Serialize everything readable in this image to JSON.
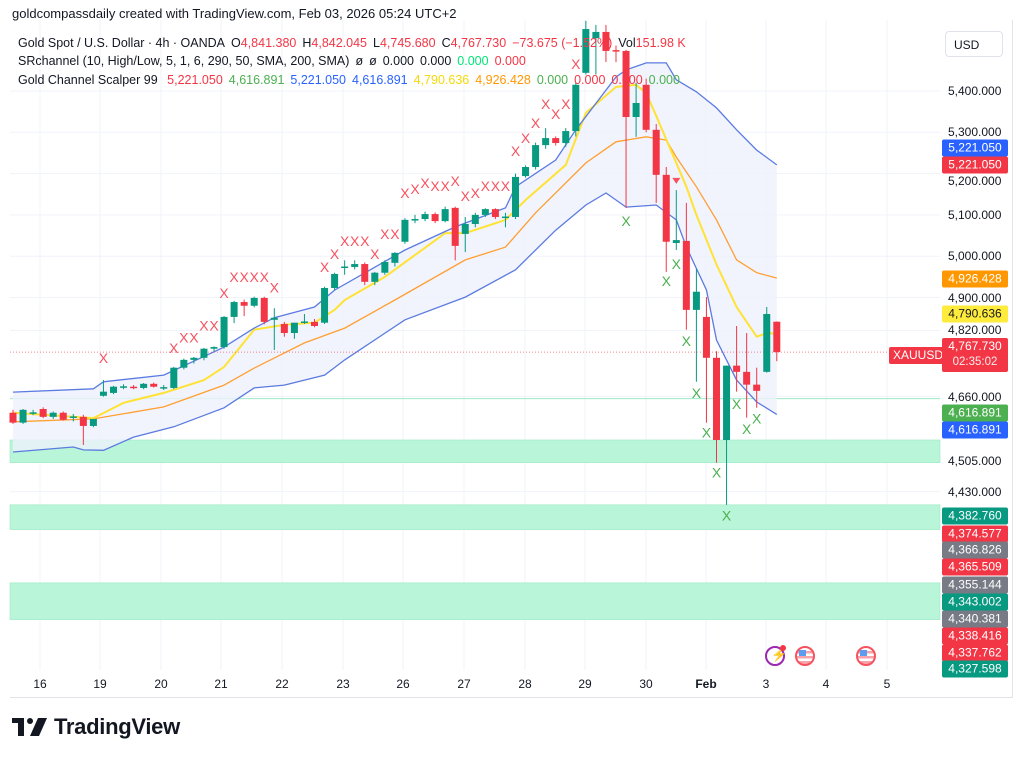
{
  "header": {
    "title": "goldcompassdaily created with TradingView.com, Feb 03, 2026 05:24 UTC+2"
  },
  "legend": {
    "main": {
      "symbol": "Gold Spot / U.S. Dollar · 4h · OANDA",
      "o_label": "O",
      "o": "4,841.380",
      "h_label": "H",
      "h": "4,842.045",
      "l_label": "L",
      "l": "4,745.680",
      "c_label": "C",
      "c": "4,767.730",
      "change": "−73.675 (−1.52%)",
      "vol_label": "Vol",
      "vol": "151.98 K"
    },
    "sr": {
      "name": "SRchannel (10, High/Low, 5, 1, 6, 290, 50, SMA, 200, SMA)",
      "v1": "ø",
      "v2": "ø",
      "v3": "0.000",
      "v4": "0.000",
      "v5": "0.000",
      "v6": "0.000"
    },
    "gcs": {
      "name": "Gold Channel Scalper 99",
      "values": [
        {
          "text": "5,221.050",
          "color": "#f23645"
        },
        {
          "text": "4,616.891",
          "color": "#4caf50"
        },
        {
          "text": "5,221.050",
          "color": "#2962ff"
        },
        {
          "text": "4,616.891",
          "color": "#2962ff"
        },
        {
          "text": "4,790.636",
          "color": "#f5d90a"
        },
        {
          "text": "4,926.428",
          "color": "#ff9800"
        },
        {
          "text": "0.000",
          "color": "#4caf50"
        },
        {
          "text": "0.000",
          "color": "#f23645"
        },
        {
          "text": "0.000",
          "color": "#f23645"
        },
        {
          "text": "0.000",
          "color": "#4caf50"
        }
      ]
    }
  },
  "currency_button": "USD",
  "symbol_label": "XAUUSD",
  "countdown": "02:35:02",
  "colors": {
    "up": "#089981",
    "down": "#f23645",
    "channel": "#5b7be0",
    "channel_fill": "#eef1fb",
    "fast_ma": "#ffe234",
    "slow_ma": "#ff9f32",
    "zone": "#b9f5d8",
    "sell_mark": "#f7525f",
    "buy_mark": "#4caf50"
  },
  "price_badges": [
    {
      "text": "5,221.050",
      "color": "#2962ff"
    },
    {
      "text": "5,221.050",
      "color": "#f23645"
    },
    {
      "text": "4,926.428",
      "color": "#ff9800"
    },
    {
      "text": "4,790.636",
      "color": "#ffeb3b"
    },
    {
      "text": "4,767.730",
      "color": "#f23645"
    },
    {
      "text": "4,616.891",
      "color": "#4caf50"
    },
    {
      "text": "4,616.891",
      "color": "#2962ff"
    },
    {
      "text": "4,382.760",
      "color": "#089981"
    },
    {
      "text": "4,374.577",
      "color": "#f23645"
    },
    {
      "text": "4,366.826",
      "color": "#787b86"
    },
    {
      "text": "4,365.509",
      "color": "#f23645"
    },
    {
      "text": "4,355.144",
      "color": "#787b86"
    },
    {
      "text": "4,343.002",
      "color": "#089981"
    },
    {
      "text": "4,340.381",
      "color": "#787b86"
    },
    {
      "text": "4,338.416",
      "color": "#f23645"
    },
    {
      "text": "4,337.762",
      "color": "#f23645"
    },
    {
      "text": "4,327.598",
      "color": "#089981"
    }
  ],
  "events": [
    "lightning-event-icon",
    "us-flag-icon",
    "us-flag-icon"
  ],
  "logo": {
    "text": "TradingView"
  },
  "chart_data": {
    "type": "candlestick",
    "timeframe": "4h",
    "x_tick_labels": [
      "16",
      "19",
      "20",
      "21",
      "22",
      "23",
      "26",
      "27",
      "28",
      "29",
      "30",
      "Feb",
      "3",
      "4",
      "5"
    ],
    "y_tick_labels": [
      {
        "price": 5400,
        "text": "5,400.000"
      },
      {
        "price": 5300,
        "text": "5,300.000"
      },
      {
        "price": 5200,
        "text": "5,200.000"
      },
      {
        "price": 5100,
        "text": "5,100.000"
      },
      {
        "price": 5000,
        "text": "5,000.000"
      },
      {
        "price": 4900,
        "text": "4,900.000"
      },
      {
        "price": 4820,
        "text": "4,820.000"
      },
      {
        "price": 4660,
        "text": "4,660.000"
      },
      {
        "price": 4505,
        "text": "4,505.000"
      },
      {
        "price": 4430,
        "text": "4,430.000"
      }
    ],
    "current_price": 4767.73,
    "candles_ohlc": [
      [
        4621,
        4628,
        4594,
        4597
      ],
      [
        4597,
        4630,
        4594,
        4628
      ],
      [
        4621,
        4628,
        4615,
        4622
      ],
      [
        4630,
        4634,
        4608,
        4611
      ],
      [
        4611,
        4624,
        4606,
        4621
      ],
      [
        4621,
        4624,
        4602,
        4604
      ],
      [
        4611,
        4618,
        4600,
        4612
      ],
      [
        4611,
        4616,
        4543,
        4589
      ],
      [
        4589,
        4606,
        4586,
        4606
      ],
      [
        4662,
        4700,
        4660,
        4672
      ],
      [
        4669,
        4686,
        4666,
        4684
      ],
      [
        4684,
        4690,
        4678,
        4685
      ],
      [
        4684,
        4688,
        4678,
        4681
      ],
      [
        4681,
        4693,
        4678,
        4691
      ],
      [
        4691,
        4694,
        4682,
        4684
      ],
      [
        4682,
        4688,
        4676,
        4683
      ],
      [
        4681,
        4732,
        4678,
        4730
      ],
      [
        4730,
        4752,
        4726,
        4749
      ],
      [
        4749,
        4756,
        4740,
        4754
      ],
      [
        4754,
        4778,
        4748,
        4776
      ],
      [
        4776,
        4782,
        4770,
        4780
      ],
      [
        4780,
        4855,
        4776,
        4853
      ],
      [
        4853,
        4892,
        4838,
        4889
      ],
      [
        4889,
        4895,
        4855,
        4880
      ],
      [
        4880,
        4902,
        4876,
        4899
      ],
      [
        4899,
        4902,
        4835,
        4841
      ],
      [
        4846,
        4874,
        4773,
        4851
      ],
      [
        4836,
        4841,
        4805,
        4814
      ],
      [
        4814,
        4839,
        4800,
        4839
      ],
      [
        4841,
        4860,
        4836,
        4842
      ],
      [
        4841,
        4848,
        4828,
        4831
      ],
      [
        4839,
        4926,
        4836,
        4923
      ],
      [
        4923,
        4960,
        4918,
        4957
      ],
      [
        4972,
        4990,
        4955,
        4975
      ],
      [
        4974,
        4990,
        4968,
        4981
      ],
      [
        4981,
        4985,
        4930,
        4938
      ],
      [
        4938,
        4962,
        4930,
        4960
      ],
      [
        4960,
        4990,
        4955,
        4986
      ],
      [
        4984,
        5010,
        4975,
        5008
      ],
      [
        5035,
        5092,
        5030,
        5088
      ],
      [
        5088,
        5100,
        5080,
        5090
      ],
      [
        5090,
        5108,
        5085,
        5102
      ],
      [
        5102,
        5106,
        5080,
        5085
      ],
      [
        5085,
        5120,
        5082,
        5114
      ],
      [
        5117,
        5120,
        4990,
        5025
      ],
      [
        5054,
        5095,
        5010,
        5078
      ],
      [
        5078,
        5105,
        5070,
        5100
      ],
      [
        5100,
        5116,
        5095,
        5114
      ],
      [
        5114,
        5116,
        5090,
        5095
      ],
      [
        5095,
        5105,
        5070,
        5096
      ],
      [
        5095,
        5200,
        5090,
        5192
      ],
      [
        5194,
        5220,
        5190,
        5216
      ],
      [
        5216,
        5275,
        5210,
        5269
      ],
      [
        5269,
        5310,
        5260,
        5286
      ],
      [
        5286,
        5290,
        5268,
        5274
      ],
      [
        5274,
        5310,
        5265,
        5303
      ],
      [
        5303,
        5420,
        5290,
        5415
      ],
      [
        5444,
        5570,
        5440,
        5550
      ],
      [
        5528,
        5560,
        5440,
        5543
      ],
      [
        5543,
        5560,
        5470,
        5497
      ],
      [
        5499,
        5510,
        5470,
        5497
      ],
      [
        5497,
        5500,
        5117,
        5337
      ],
      [
        5337,
        5420,
        5289,
        5371
      ],
      [
        5415,
        5430,
        5300,
        5306
      ],
      [
        5306,
        5320,
        5129,
        5197
      ],
      [
        5197,
        5216,
        4962,
        5035
      ],
      [
        5032,
        5160,
        5015,
        5039
      ],
      [
        5037,
        5129,
        4822,
        4870
      ],
      [
        4870,
        4969,
        4696,
        4914
      ],
      [
        4853,
        4901,
        4597,
        4754
      ],
      [
        4754,
        4770,
        4500,
        4555
      ],
      [
        4555,
        4735,
        4398,
        4735
      ],
      [
        4735,
        4831,
        4672,
        4720
      ],
      [
        4720,
        4814,
        4609,
        4689
      ],
      [
        4689,
        4730,
        4633,
        4674
      ],
      [
        4720,
        4877,
        4718,
        4860
      ],
      [
        4841.38,
        4842.045,
        4745.68,
        4767.73
      ]
    ],
    "channel_upper": [
      [
        0,
        4671
      ],
      [
        8,
        4679
      ],
      [
        9,
        4696
      ],
      [
        15,
        4712
      ],
      [
        21,
        4780
      ],
      [
        24,
        4826
      ],
      [
        26,
        4851
      ],
      [
        30,
        4877
      ],
      [
        32,
        4918
      ],
      [
        39,
        5015
      ],
      [
        44,
        5071
      ],
      [
        49,
        5117
      ],
      [
        50,
        5168
      ],
      [
        54,
        5233
      ],
      [
        56,
        5306
      ],
      [
        60,
        5434
      ],
      [
        61,
        5451
      ],
      [
        63,
        5468
      ],
      [
        65,
        5468
      ],
      [
        66,
        5427
      ],
      [
        68,
        5398
      ],
      [
        70,
        5359
      ],
      [
        72,
        5306
      ],
      [
        74,
        5257
      ],
      [
        76,
        5221
      ]
    ],
    "channel_lower": [
      [
        0,
        4526
      ],
      [
        6,
        4538
      ],
      [
        7,
        4531
      ],
      [
        9,
        4530
      ],
      [
        12,
        4562
      ],
      [
        16,
        4587
      ],
      [
        21,
        4633
      ],
      [
        24,
        4681
      ],
      [
        27,
        4688
      ],
      [
        31,
        4712
      ],
      [
        33,
        4749
      ],
      [
        39,
        4846
      ],
      [
        45,
        4901
      ],
      [
        50,
        4967
      ],
      [
        54,
        5063
      ],
      [
        57,
        5124
      ],
      [
        59,
        5153
      ],
      [
        61,
        5119
      ],
      [
        64,
        5124
      ],
      [
        66,
        5088
      ],
      [
        67,
        5022
      ],
      [
        69,
        4918
      ],
      [
        70,
        4797
      ],
      [
        72,
        4700
      ],
      [
        74,
        4647
      ],
      [
        76,
        4617
      ]
    ],
    "fast_ma": [
      [
        0,
        4621
      ],
      [
        8,
        4608
      ],
      [
        11,
        4645
      ],
      [
        15,
        4669
      ],
      [
        19,
        4700
      ],
      [
        21,
        4732
      ],
      [
        24,
        4822
      ],
      [
        27,
        4834
      ],
      [
        30,
        4839
      ],
      [
        32,
        4870
      ],
      [
        33,
        4894
      ],
      [
        37,
        4950
      ],
      [
        43,
        5056
      ],
      [
        45,
        5056
      ],
      [
        49,
        5088
      ],
      [
        51,
        5136
      ],
      [
        55,
        5221
      ],
      [
        57,
        5347
      ],
      [
        60,
        5410
      ],
      [
        62,
        5415
      ],
      [
        63,
        5395
      ],
      [
        64,
        5340
      ],
      [
        67,
        5168
      ],
      [
        68,
        5100
      ],
      [
        70,
        4980
      ],
      [
        72,
        4877
      ],
      [
        74,
        4805
      ],
      [
        75,
        4814
      ],
      [
        76,
        4812
      ]
    ],
    "slow_ma": [
      [
        0,
        4599
      ],
      [
        8,
        4606
      ],
      [
        15,
        4635
      ],
      [
        21,
        4688
      ],
      [
        24,
        4729
      ],
      [
        29,
        4790
      ],
      [
        33,
        4826
      ],
      [
        38,
        4894
      ],
      [
        45,
        4991
      ],
      [
        49,
        5022
      ],
      [
        52,
        5105
      ],
      [
        57,
        5226
      ],
      [
        60,
        5277
      ],
      [
        63,
        5289
      ],
      [
        65,
        5281
      ],
      [
        66,
        5240
      ],
      [
        68,
        5168
      ],
      [
        70,
        5088
      ],
      [
        72,
        4991
      ],
      [
        74,
        4960
      ],
      [
        76,
        4947
      ]
    ],
    "sell_marks": [
      [
        9,
        4744
      ],
      [
        16,
        4768
      ],
      [
        17,
        4793
      ],
      [
        18,
        4793
      ],
      [
        19,
        4822
      ],
      [
        20,
        4822
      ],
      [
        21,
        4901
      ],
      [
        22,
        4940
      ],
      [
        23,
        4940
      ],
      [
        24,
        4940
      ],
      [
        25,
        4940
      ],
      [
        26,
        4914
      ],
      [
        31,
        4964
      ],
      [
        32,
        4996
      ],
      [
        33,
        5027
      ],
      [
        34,
        5027
      ],
      [
        35,
        5027
      ],
      [
        36,
        4996
      ],
      [
        37,
        5044
      ],
      [
        38,
        5044
      ],
      [
        39,
        5143
      ],
      [
        40,
        5153
      ],
      [
        41,
        5168
      ],
      [
        42,
        5160
      ],
      [
        43,
        5160
      ],
      [
        44,
        5172
      ],
      [
        45,
        5136
      ],
      [
        46,
        5143
      ],
      [
        47,
        5160
      ],
      [
        48,
        5160
      ],
      [
        49,
        5160
      ],
      [
        50,
        5245
      ],
      [
        51,
        5277
      ],
      [
        52,
        5313
      ],
      [
        53,
        5359
      ],
      [
        54,
        5335
      ],
      [
        55,
        5359
      ],
      [
        56,
        5456
      ]
    ],
    "buy_marks": [
      [
        61,
        5076
      ],
      [
        65,
        4930
      ],
      [
        66,
        4972
      ],
      [
        67,
        4785
      ],
      [
        68,
        4659
      ],
      [
        69,
        4563
      ],
      [
        70,
        4466
      ],
      [
        71,
        4362
      ],
      [
        72,
        4633
      ],
      [
        73,
        4572
      ],
      [
        74,
        4597
      ]
    ],
    "sell_triangle": [
      [
        66,
        5180
      ]
    ],
    "mark_text": "X",
    "zones": [
      [
        4500,
        4555
      ],
      [
        4338,
        4398
      ],
      [
        4120,
        4209
      ]
    ],
    "support_line": 4655
  }
}
